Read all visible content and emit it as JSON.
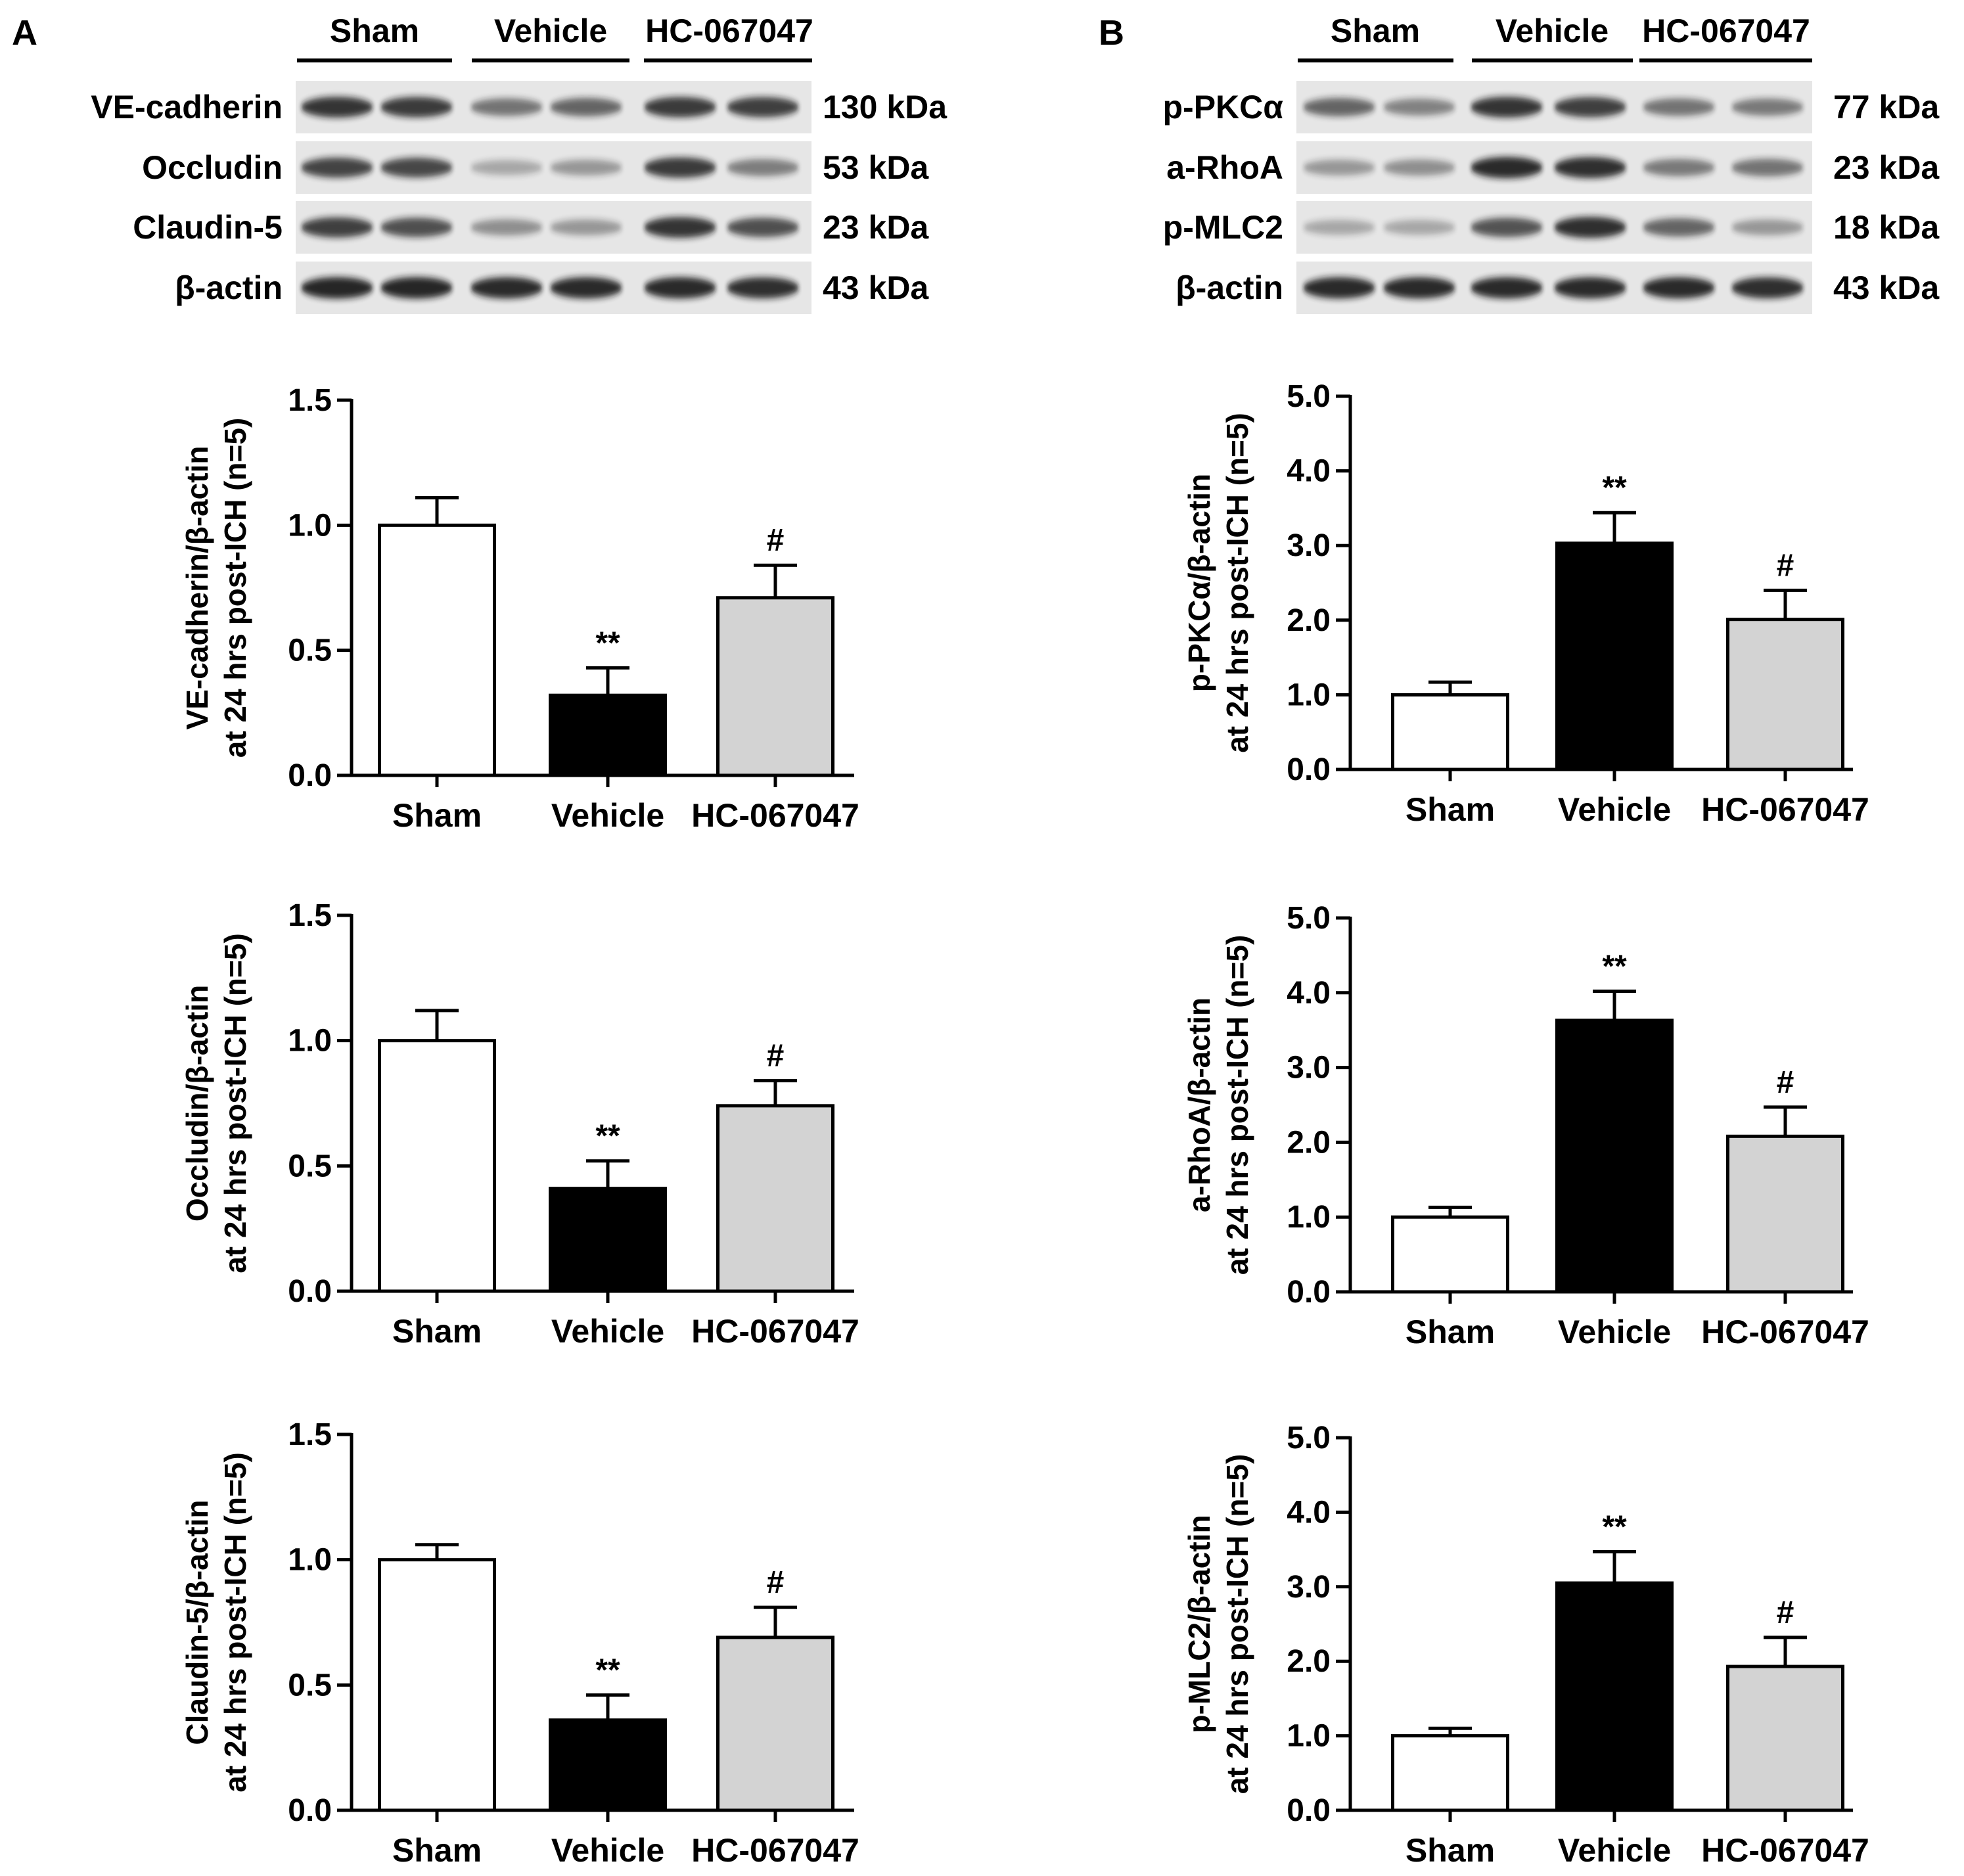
{
  "panels": [
    {
      "letter": "A",
      "groups": [
        "Sham",
        "Vehicle",
        "HC-067047"
      ],
      "blots": [
        {
          "protein": "VE-cadherin",
          "kda": "130 kDa",
          "intensity": [
            0.85,
            0.82,
            0.55,
            0.62,
            0.82,
            0.8
          ]
        },
        {
          "protein": "Occludin",
          "kda": "53 kDa",
          "intensity": [
            0.78,
            0.76,
            0.3,
            0.38,
            0.82,
            0.5
          ]
        },
        {
          "protein": "Claudin-5",
          "kda": "23 kDa",
          "intensity": [
            0.8,
            0.72,
            0.42,
            0.38,
            0.85,
            0.72
          ]
        },
        {
          "protein": "β-actin",
          "kda": "43 kDa",
          "intensity": [
            0.92,
            0.92,
            0.9,
            0.9,
            0.9,
            0.88
          ]
        }
      ]
    },
    {
      "letter": "B",
      "groups": [
        "Sham",
        "Vehicle",
        "HC-067047"
      ],
      "blots": [
        {
          "protein": "p-PKCα",
          "kda": "77 kDa",
          "intensity": [
            0.62,
            0.48,
            0.85,
            0.8,
            0.55,
            0.52
          ]
        },
        {
          "protein": "a-RhoA",
          "kda": "23 kDa",
          "intensity": [
            0.38,
            0.42,
            0.9,
            0.88,
            0.52,
            0.55
          ]
        },
        {
          "protein": "p-MLC2",
          "kda": "18 kDa",
          "intensity": [
            0.3,
            0.3,
            0.7,
            0.88,
            0.62,
            0.38
          ]
        },
        {
          "protein": "β-actin",
          "kda": "43 kDa",
          "intensity": [
            0.9,
            0.9,
            0.9,
            0.9,
            0.9,
            0.88
          ]
        }
      ]
    }
  ],
  "chart_data": [
    {
      "type": "bar",
      "ylabel_line1": "VE-cadherin/β-actin",
      "ylabel_line2": "at 24 hrs post-ICH (n=5)",
      "categories": [
        "Sham",
        "Vehicle",
        "HC-067047"
      ],
      "values": [
        1.0,
        0.32,
        0.71
      ],
      "errors": [
        0.11,
        0.11,
        0.13
      ],
      "annotations": [
        "",
        "**",
        "#"
      ],
      "ylim": [
        0.0,
        1.5
      ],
      "yticks": [
        "0.0",
        "0.5",
        "1.0",
        "1.5"
      ]
    },
    {
      "type": "bar",
      "ylabel_line1": "Occludin/β-actin",
      "ylabel_line2": "at 24 hrs post-ICH (n=5)",
      "categories": [
        "Sham",
        "Vehicle",
        "HC-067047"
      ],
      "values": [
        1.0,
        0.41,
        0.74
      ],
      "errors": [
        0.12,
        0.11,
        0.1
      ],
      "annotations": [
        "",
        "**",
        "#"
      ],
      "ylim": [
        0.0,
        1.5
      ],
      "yticks": [
        "0.0",
        "0.5",
        "1.0",
        "1.5"
      ]
    },
    {
      "type": "bar",
      "ylabel_line1": "Claudin-5/β-actin",
      "ylabel_line2": "at 24 hrs post-ICH (n=5)",
      "categories": [
        "Sham",
        "Vehicle",
        "HC-067047"
      ],
      "values": [
        1.0,
        0.36,
        0.69
      ],
      "errors": [
        0.06,
        0.1,
        0.12
      ],
      "annotations": [
        "",
        "**",
        "#"
      ],
      "ylim": [
        0.0,
        1.5
      ],
      "yticks": [
        "0.0",
        "0.5",
        "1.0",
        "1.5"
      ]
    },
    {
      "type": "bar",
      "ylabel_line1": "p-PKCα/β-actin",
      "ylabel_line2": "at 24 hrs post-ICH (n=5)",
      "categories": [
        "Sham",
        "Vehicle",
        "HC-067047"
      ],
      "values": [
        1.0,
        3.03,
        2.01
      ],
      "errors": [
        0.17,
        0.41,
        0.39
      ],
      "annotations": [
        "",
        "**",
        "#"
      ],
      "ylim": [
        0.0,
        5.0
      ],
      "yticks": [
        "0.0",
        "1.0",
        "2.0",
        "3.0",
        "4.0",
        "5.0"
      ]
    },
    {
      "type": "bar",
      "ylabel_line1": "a-RhoA/β-actin",
      "ylabel_line2": "at 24 hrs post-ICH (n=5)",
      "categories": [
        "Sham",
        "Vehicle",
        "HC-067047"
      ],
      "values": [
        1.0,
        3.63,
        2.08
      ],
      "errors": [
        0.13,
        0.39,
        0.39
      ],
      "annotations": [
        "",
        "**",
        "#"
      ],
      "ylim": [
        0.0,
        5.0
      ],
      "yticks": [
        "0.0",
        "1.0",
        "2.0",
        "3.0",
        "4.0",
        "5.0"
      ]
    },
    {
      "type": "bar",
      "ylabel_line1": "p-MLC2/β-actin",
      "ylabel_line2": "at 24 hrs post-ICH (n=5)",
      "categories": [
        "Sham",
        "Vehicle",
        "HC-067047"
      ],
      "values": [
        1.0,
        3.05,
        1.93
      ],
      "errors": [
        0.1,
        0.42,
        0.39
      ],
      "annotations": [
        "",
        "**",
        "#"
      ],
      "ylim": [
        0.0,
        5.0
      ],
      "yticks": [
        "0.0",
        "1.0",
        "2.0",
        "3.0",
        "4.0",
        "5.0"
      ]
    }
  ],
  "colors": {
    "sham": "#ffffff",
    "vehicle": "#000000",
    "hc067047": "#d3d3d3",
    "axis": "#000000",
    "band": "#141414",
    "membrane": "#e6e6e6"
  }
}
